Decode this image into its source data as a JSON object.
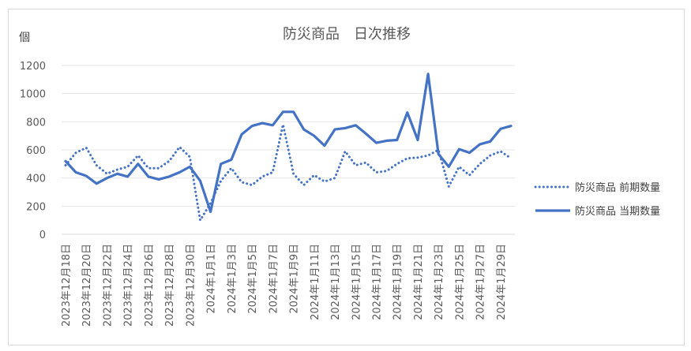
{
  "chart_data": {
    "type": "line",
    "title": "防災商品　日次推移",
    "ylabel": "個",
    "xlabel": "",
    "ylim": [
      0,
      1200
    ],
    "yticks": [
      0,
      200,
      400,
      600,
      800,
      1000,
      1200
    ],
    "grid": true,
    "legend_position": "right",
    "x": [
      "2023年12月18日",
      "2023年12月19日",
      "2023年12月20日",
      "2023年12月21日",
      "2023年12月22日",
      "2023年12月23日",
      "2023年12月24日",
      "2023年12月25日",
      "2023年12月26日",
      "2023年12月27日",
      "2023年12月28日",
      "2023年12月29日",
      "2023年12月30日",
      "2023年12月31日",
      "2024年1月1日",
      "2024年1月2日",
      "2024年1月3日",
      "2024年1月4日",
      "2024年1月5日",
      "2024年1月6日",
      "2024年1月7日",
      "2024年1月8日",
      "2024年1月9日",
      "2024年1月10日",
      "2024年1月11日",
      "2024年1月12日",
      "2024年1月13日",
      "2024年1月14日",
      "2024年1月15日",
      "2024年1月16日",
      "2024年1月17日",
      "2024年1月18日",
      "2024年1月19日",
      "2024年1月20日",
      "2024年1月21日",
      "2024年1月22日",
      "2024年1月23日",
      "2024年1月24日",
      "2024年1月25日",
      "2024年1月26日",
      "2024年1月27日",
      "2024年1月28日",
      "2024年1月29日",
      "2024年1月30日"
    ],
    "x_tick_labels": [
      "2023年12月18日",
      "2023年12月20日",
      "2023年12月22日",
      "2023年12月24日",
      "2023年12月26日",
      "2023年12月28日",
      "2023年12月30日",
      "2024年1月1日",
      "2024年1月3日",
      "2024年1月5日",
      "2024年1月7日",
      "2024年1月9日",
      "2024年1月11日",
      "2024年1月13日",
      "2024年1月15日",
      "2024年1月17日",
      "2024年1月19日",
      "2024年1月21日",
      "2024年1月23日",
      "2024年1月25日",
      "2024年1月27日",
      "2024年1月29日"
    ],
    "series": [
      {
        "name": "防災商品 前期数量",
        "style": "dotted",
        "color": "#4472c4",
        "values": [
          490,
          580,
          615,
          490,
          430,
          460,
          480,
          560,
          470,
          470,
          520,
          620,
          550,
          100,
          220,
          380,
          470,
          370,
          350,
          410,
          440,
          780,
          430,
          350,
          420,
          375,
          400,
          590,
          490,
          510,
          440,
          450,
          500,
          540,
          545,
          560,
          600,
          340,
          480,
          420,
          500,
          560,
          590,
          540
        ]
      },
      {
        "name": "防災商品 当期数量",
        "style": "solid",
        "color": "#4472c4",
        "values": [
          520,
          440,
          415,
          360,
          400,
          430,
          410,
          500,
          410,
          390,
          410,
          440,
          480,
          380,
          160,
          500,
          530,
          710,
          770,
          790,
          775,
          870,
          870,
          745,
          700,
          630,
          745,
          755,
          775,
          715,
          650,
          665,
          670,
          865,
          670,
          1140,
          570,
          480,
          605,
          580,
          640,
          660,
          750,
          770
        ]
      }
    ]
  }
}
